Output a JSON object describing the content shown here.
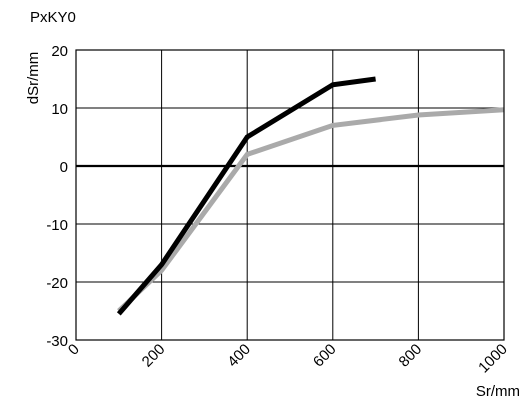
{
  "chart_data": {
    "type": "line",
    "title": "PxKY0",
    "xlabel": "Sr/mm",
    "ylabel": "dSr/mm",
    "xlim": [
      0,
      1000
    ],
    "ylim": [
      -30,
      20
    ],
    "x_ticks": [
      "0",
      "200",
      "400",
      "600",
      "800",
      "1000"
    ],
    "x_tick_values": [
      0,
      200,
      400,
      600,
      800,
      1000
    ],
    "y_ticks": [
      "20",
      "10",
      "0",
      "-10",
      "-20",
      "-30"
    ],
    "y_tick_values": [
      20,
      10,
      0,
      -10,
      -20,
      -30
    ],
    "grid": true,
    "zero_line": true,
    "series": [
      {
        "color": "#aaaaaa",
        "points": [
          {
            "x": 100,
            "y": -25
          },
          {
            "x": 200,
            "y": -18
          },
          {
            "x": 400,
            "y": 2
          },
          {
            "x": 600,
            "y": 7
          },
          {
            "x": 800,
            "y": 8.8
          },
          {
            "x": 1000,
            "y": 9.7
          }
        ]
      },
      {
        "color": "#000000",
        "points": [
          {
            "x": 100,
            "y": -25.5
          },
          {
            "x": 200,
            "y": -17
          },
          {
            "x": 400,
            "y": 5
          },
          {
            "x": 600,
            "y": 14
          },
          {
            "x": 700,
            "y": 15
          }
        ]
      }
    ]
  }
}
